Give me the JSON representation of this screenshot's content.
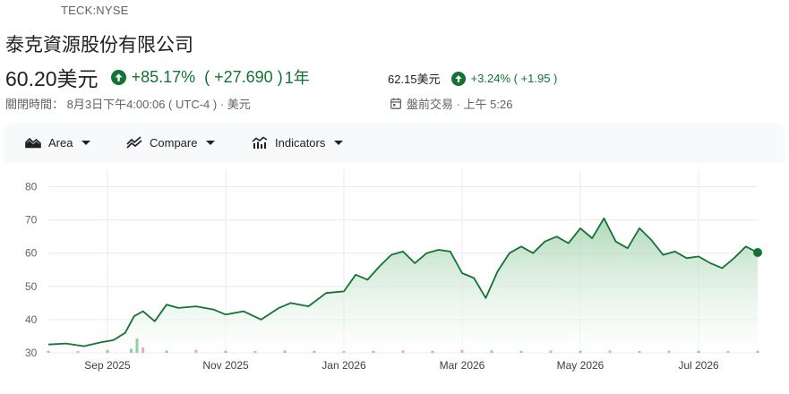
{
  "header": {
    "ticker": "TECK:NYSE",
    "company_name": "泰克資源股份有限公司",
    "price": "60.20美元",
    "change_pct": "+85.17%",
    "change_abs": "( +27.690 )",
    "period": "1年",
    "close_info": "關閉時間： 8月3日下午4:00:06 ( UTC-4    ) ·  美元"
  },
  "after_hours": {
    "price": "62.15美元",
    "change": "+3.24% ( +1.95 )",
    "label": "盤前交易 · 上午 5:26"
  },
  "toolbar": {
    "area_label": "Area",
    "compare_label": "Compare",
    "indicators_label": "Indicators"
  },
  "colors": {
    "positive": "#137333",
    "line": "#137333",
    "fill": "#e6f4ea",
    "grid": "#e8eaed",
    "vol_up": "#8fd19e",
    "vol_down": "#f4a7a7"
  },
  "chart_data": {
    "type": "area",
    "y_ticks": [
      "30",
      "40",
      "50",
      "60",
      "70",
      "80"
    ],
    "ylim": [
      30,
      85
    ],
    "x_ticks": [
      "Sep 2025",
      "Nov 2025",
      "Jan 2026",
      "Mar 2026",
      "May 2026",
      "Jul 2026"
    ],
    "x_tick_months": [
      1,
      3,
      5,
      7,
      9,
      11
    ],
    "x_range_months": [
      0,
      12
    ],
    "series": [
      {
        "x": [
          0.0,
          0.3,
          0.6,
          0.9,
          1.1,
          1.3,
          1.45,
          1.6,
          1.8,
          2.0,
          2.2,
          2.5,
          2.8,
          3.0,
          3.3,
          3.6,
          3.9,
          4.1,
          4.4,
          4.7,
          5.0,
          5.2,
          5.4,
          5.6,
          5.8,
          6.0,
          6.2,
          6.4,
          6.6,
          6.8,
          7.0,
          7.2,
          7.4,
          7.6,
          7.8,
          8.0,
          8.2,
          8.4,
          8.6,
          8.8,
          9.0,
          9.2,
          9.4,
          9.6,
          9.8,
          10.0,
          10.2,
          10.4,
          10.6,
          10.8,
          11.0,
          11.2,
          11.4,
          11.6,
          11.8,
          12.0
        ],
        "values": [
          32.5,
          32.8,
          32.0,
          33.2,
          33.8,
          36.0,
          41.0,
          42.5,
          39.5,
          44.5,
          43.5,
          44.0,
          43.0,
          41.5,
          42.5,
          40.0,
          43.5,
          45.0,
          44.0,
          48.0,
          48.5,
          53.5,
          52.0,
          56.0,
          59.5,
          60.5,
          57.0,
          60.0,
          61.0,
          60.5,
          54.0,
          52.5,
          46.5,
          54.5,
          60.0,
          62.0,
          60.0,
          63.5,
          65.0,
          63.0,
          67.5,
          64.5,
          70.5,
          63.5,
          61.5,
          67.5,
          64.0,
          59.5,
          60.5,
          58.5,
          59.0,
          57.0,
          55.5,
          58.5,
          62.0,
          60.2
        ]
      }
    ],
    "volume": {
      "x": [
        0.0,
        0.5,
        1.0,
        1.4,
        1.5,
        1.6,
        2.0,
        2.5,
        3.0,
        3.5,
        4.0,
        4.5,
        5.0,
        5.5,
        6.0,
        6.5,
        7.0,
        7.5,
        8.0,
        8.5,
        9.0,
        9.5,
        10.0,
        10.5,
        11.0,
        11.5,
        12.0
      ],
      "values": [
        6,
        5,
        8,
        12,
        42,
        16,
        7,
        9,
        6,
        5,
        7,
        6,
        5,
        6,
        7,
        6,
        9,
        7,
        6,
        7,
        6,
        7,
        5,
        6,
        6,
        5,
        6
      ],
      "up": [
        true,
        false,
        true,
        true,
        true,
        false,
        true,
        false,
        true,
        false,
        true,
        true,
        false,
        true,
        false,
        true,
        false,
        true,
        true,
        false,
        true,
        false,
        true,
        false,
        true,
        false,
        true
      ]
    }
  }
}
